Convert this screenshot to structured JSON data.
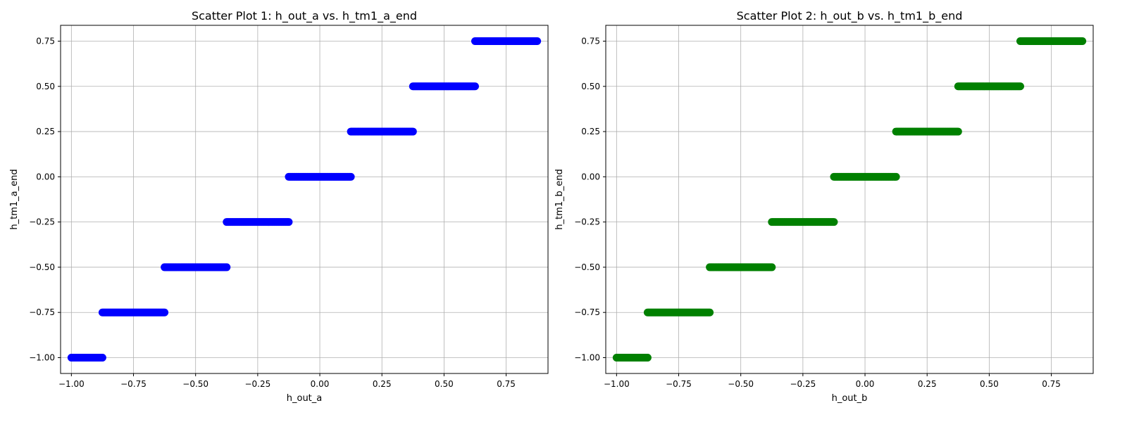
{
  "chart_data": [
    {
      "type": "scatter",
      "title": "Scatter Plot 1: h_out_a vs. h_tm1_a_end",
      "xlabel": "h_out_a",
      "ylabel": "h_tm1_a_end",
      "xlim": [
        -1.0435,
        0.9185
      ],
      "ylim": [
        -1.0875,
        0.8375
      ],
      "xticks": [
        -1.0,
        -0.75,
        -0.5,
        -0.25,
        0.0,
        0.25,
        0.5,
        0.75
      ],
      "xtick_labels": [
        "−1.00",
        "−0.75",
        "−0.50",
        "−0.25",
        "0.00",
        "0.25",
        "0.50",
        "0.75"
      ],
      "yticks": [
        -1.0,
        -0.75,
        -0.5,
        -0.25,
        0.0,
        0.25,
        0.5,
        0.75
      ],
      "ytick_labels": [
        "−1.00",
        "−0.75",
        "−0.50",
        "−0.25",
        "0.00",
        "0.25",
        "0.50",
        "0.75"
      ],
      "grid": true,
      "color": "#0000ff",
      "segments": [
        {
          "x": [
            -1.0,
            -0.875
          ],
          "y": -1.0
        },
        {
          "x": [
            -0.875,
            -0.625
          ],
          "y": -0.75
        },
        {
          "x": [
            -0.625,
            -0.375
          ],
          "y": -0.5
        },
        {
          "x": [
            -0.375,
            -0.125
          ],
          "y": -0.25
        },
        {
          "x": [
            -0.125,
            0.125
          ],
          "y": 0.0
        },
        {
          "x": [
            0.125,
            0.375
          ],
          "y": 0.25
        },
        {
          "x": [
            0.375,
            0.625
          ],
          "y": 0.5
        },
        {
          "x": [
            0.625,
            0.875
          ],
          "y": 0.75
        }
      ]
    },
    {
      "type": "scatter",
      "title": "Scatter Plot 2: h_out_b vs. h_tm1_b_end",
      "xlabel": "h_out_b",
      "ylabel": "h_tm1_b_end",
      "xlim": [
        -1.0435,
        0.9185
      ],
      "ylim": [
        -1.0875,
        0.8375
      ],
      "xticks": [
        -1.0,
        -0.75,
        -0.5,
        -0.25,
        0.0,
        0.25,
        0.5,
        0.75
      ],
      "xtick_labels": [
        "−1.00",
        "−0.75",
        "−0.50",
        "−0.25",
        "0.00",
        "0.25",
        "0.50",
        "0.75"
      ],
      "yticks": [
        -1.0,
        -0.75,
        -0.5,
        -0.25,
        0.0,
        0.25,
        0.5,
        0.75
      ],
      "ytick_labels": [
        "−1.00",
        "−0.75",
        "−0.50",
        "−0.25",
        "0.00",
        "0.25",
        "0.50",
        "0.75"
      ],
      "grid": true,
      "color": "#008000",
      "segments": [
        {
          "x": [
            -1.0,
            -0.875
          ],
          "y": -1.0
        },
        {
          "x": [
            -0.875,
            -0.625
          ],
          "y": -0.75
        },
        {
          "x": [
            -0.625,
            -0.375
          ],
          "y": -0.5
        },
        {
          "x": [
            -0.375,
            -0.125
          ],
          "y": -0.25
        },
        {
          "x": [
            -0.125,
            0.125
          ],
          "y": 0.0
        },
        {
          "x": [
            0.125,
            0.375
          ],
          "y": 0.25
        },
        {
          "x": [
            0.375,
            0.625
          ],
          "y": 0.5
        },
        {
          "x": [
            0.625,
            0.875
          ],
          "y": 0.75
        }
      ]
    }
  ]
}
